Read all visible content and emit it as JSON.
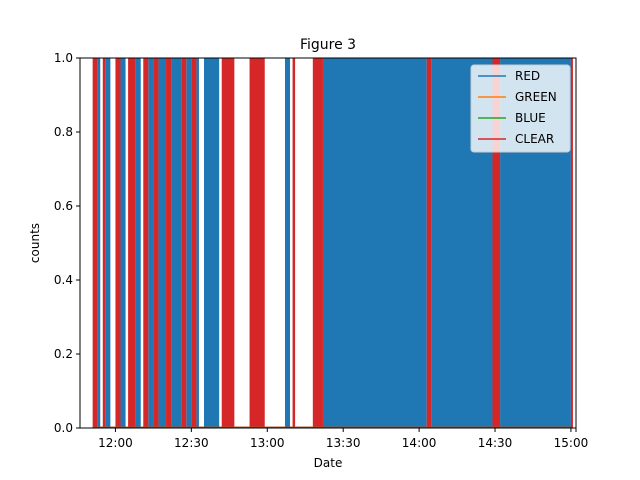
{
  "chart_data": {
    "type": "area",
    "title": "Figure 3",
    "xlabel": "Date",
    "ylabel": "counts",
    "xlim": [
      "11:46",
      "15:02"
    ],
    "ylim": [
      0,
      1
    ],
    "x_ticks": [
      "12:00",
      "12:30",
      "13:00",
      "13:30",
      "14:00",
      "14:30",
      "15:00"
    ],
    "y_ticks": [
      "0.0",
      "0.2",
      "0.4",
      "0.6",
      "0.8",
      "1.0"
    ],
    "grid": false,
    "legend_position": "top-right",
    "legend": [
      {
        "name": "RED",
        "color": "#1f77b4"
      },
      {
        "name": "GREEN",
        "color": "#ff7f0e"
      },
      {
        "name": "BLUE",
        "color": "#2ca02c"
      },
      {
        "name": "CLEAR",
        "color": "#d62728"
      }
    ],
    "series": [
      {
        "name": "RED",
        "color": "#1f77b4",
        "value_when_on": 1.0,
        "on_intervals": [
          [
            "11:53",
            "11:54"
          ],
          [
            "11:56",
            "11:58"
          ],
          [
            "12:02",
            "12:04"
          ],
          [
            "12:08",
            "12:10"
          ],
          [
            "12:13",
            "12:15"
          ],
          [
            "12:17",
            "12:20"
          ],
          [
            "12:22",
            "12:26"
          ],
          [
            "12:28",
            "12:30"
          ],
          [
            "12:32",
            "12:33"
          ],
          [
            "12:35",
            "12:41"
          ],
          [
            "13:07",
            "13:09"
          ],
          [
            "13:22",
            "14:03"
          ],
          [
            "14:05",
            "14:29"
          ],
          [
            "14:32",
            "15:00"
          ]
        ]
      },
      {
        "name": "CLEAR",
        "color": "#d62728",
        "value_when_on": 1.0,
        "on_intervals": [
          [
            "11:51",
            "11:53"
          ],
          [
            "11:55",
            "11:56"
          ],
          [
            "12:00",
            "12:02"
          ],
          [
            "12:05",
            "12:08"
          ],
          [
            "12:11",
            "12:13"
          ],
          [
            "12:15",
            "12:17"
          ],
          [
            "12:20",
            "12:22"
          ],
          [
            "12:26",
            "12:28"
          ],
          [
            "12:30",
            "12:32"
          ],
          [
            "12:42",
            "12:47"
          ],
          [
            "12:53",
            "12:59"
          ],
          [
            "13:10",
            "13:11"
          ],
          [
            "13:18",
            "13:22"
          ],
          [
            "14:03",
            "14:05"
          ],
          [
            "14:29",
            "14:32"
          ],
          [
            "15:00",
            "15:00"
          ]
        ]
      }
    ]
  }
}
